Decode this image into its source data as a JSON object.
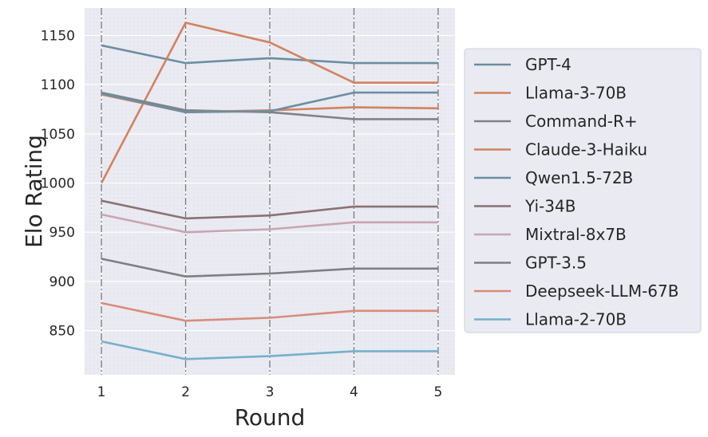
{
  "chart_data": {
    "type": "line",
    "xlabel": "Round",
    "ylabel": "Elo Rating",
    "x": [
      1,
      2,
      3,
      4,
      5
    ],
    "xlim": [
      0.8,
      5.2
    ],
    "ylim": [
      805,
      1178
    ],
    "yticks": [
      850,
      900,
      950,
      1000,
      1050,
      1100,
      1150
    ],
    "grid": true,
    "vertical_dashed_lines": true,
    "legend_position": "right",
    "series": [
      {
        "name": "GPT-4",
        "color": "#6b8ea3",
        "values": [
          1140,
          1122,
          1127,
          1122,
          1122
        ]
      },
      {
        "name": "Llama-3-70B",
        "color": "#d2835e",
        "values": [
          1000,
          1163,
          1143,
          1102,
          1102
        ]
      },
      {
        "name": "Command-R+",
        "color": "#7f8388",
        "values": [
          1092,
          1074,
          1072,
          1065,
          1065
        ]
      },
      {
        "name": "Claude-3-Haiku",
        "color": "#d2835e",
        "values": [
          1090,
          1072,
          1074,
          1077,
          1076
        ]
      },
      {
        "name": "Qwen1.5-72B",
        "color": "#6b8ea3",
        "values": [
          1091,
          1072,
          1073,
          1092,
          1092
        ]
      },
      {
        "name": "Yi-34B",
        "color": "#8a7274",
        "values": [
          982,
          964,
          967,
          976,
          976
        ]
      },
      {
        "name": "Mixtral-8x7B",
        "color": "#c8a5b3",
        "values": [
          968,
          950,
          953,
          960,
          960
        ]
      },
      {
        "name": "GPT-3.5",
        "color": "#7f7d86",
        "values": [
          923,
          905,
          908,
          913,
          913
        ]
      },
      {
        "name": "Deepseek-LLM-67B",
        "color": "#d88d77",
        "values": [
          878,
          860,
          863,
          870,
          870
        ]
      },
      {
        "name": "Llama-2-70B",
        "color": "#74b0cd",
        "values": [
          839,
          821,
          824,
          829,
          829
        ]
      }
    ]
  }
}
